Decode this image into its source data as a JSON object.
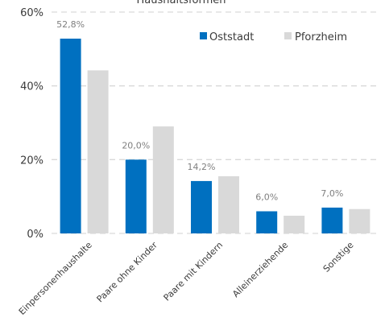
{
  "chart_data": {
    "type": "bar",
    "title": "Haushaltsformen",
    "categories": [
      "Einpersonenhaushalte",
      "Paare ohne Kinder",
      "Paare mit Kindern",
      "Alleinerziehende",
      "Sonstige"
    ],
    "series": [
      {
        "name": "Oststadt",
        "values": [
          52.8,
          20.0,
          14.2,
          6.0,
          7.0
        ],
        "color": "#0070c0",
        "labels": [
          "52,8%",
          "20,0%",
          "14,2%",
          "6,0%",
          "7,0%"
        ]
      },
      {
        "name": "Pforzheim",
        "values": [
          44.2,
          29.0,
          15.5,
          4.8,
          6.6
        ],
        "color": "#d9d9d9"
      }
    ],
    "yticks": [
      "0%",
      "20%",
      "40%",
      "60%"
    ],
    "ylim": [
      0,
      60
    ],
    "grid": true,
    "legend_position": "top-right"
  }
}
